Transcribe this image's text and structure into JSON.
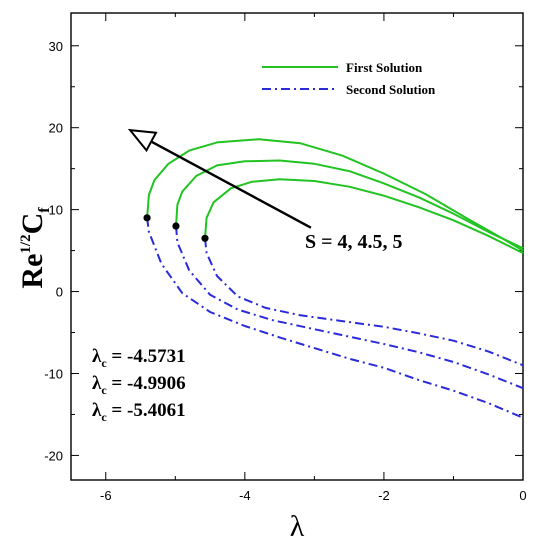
{
  "chart_data": {
    "type": "line",
    "xlabel": "λ",
    "ylabel": {
      "base": "Re",
      "base_exp": "1/2",
      "main": "C",
      "sub": "f"
    },
    "xlim": [
      -6.5,
      0
    ],
    "ylim": [
      -23,
      34
    ],
    "x_ticks": [
      -6,
      -4,
      -2,
      0
    ],
    "y_ticks": [
      -20,
      -10,
      0,
      10,
      20,
      30
    ],
    "x_tick_labels": [
      "-6",
      "-4",
      "-2",
      "0"
    ],
    "y_tick_labels": [
      "-20",
      "-10",
      "0",
      "10",
      "20",
      "30"
    ],
    "grid": false,
    "legend": {
      "placement": "top-right",
      "entries": [
        {
          "label": "First Solution",
          "color": "#22c322",
          "style": "solid"
        },
        {
          "label": "Second Solution",
          "color": "#2b2bd8",
          "style": "dashdot"
        }
      ]
    },
    "series": [
      {
        "group": "first",
        "color": "#22c322",
        "style": "solid",
        "x": [
          -5.4061,
          -5.38,
          -5.3,
          -5.1,
          -4.8,
          -4.4,
          -3.8,
          -3.2,
          -2.6,
          -2.0,
          -1.4,
          -0.8,
          -0.3,
          0
        ],
        "y": [
          9.0,
          11.8,
          13.6,
          15.6,
          17.2,
          18.2,
          18.6,
          18.1,
          16.6,
          14.4,
          11.9,
          8.9,
          6.5,
          5.0
        ]
      },
      {
        "group": "first",
        "color": "#22c322",
        "style": "solid",
        "x": [
          -4.9906,
          -4.97,
          -4.9,
          -4.7,
          -4.4,
          -4.0,
          -3.5,
          -3.0,
          -2.5,
          -2.0,
          -1.5,
          -1.0,
          -0.5,
          0
        ],
        "y": [
          8.0,
          10.6,
          12.2,
          14.1,
          15.4,
          15.9,
          16.0,
          15.6,
          14.7,
          13.2,
          11.5,
          9.5,
          7.3,
          5.3
        ]
      },
      {
        "group": "first",
        "color": "#22c322",
        "style": "solid",
        "x": [
          -4.5731,
          -4.55,
          -4.45,
          -4.2,
          -3.9,
          -3.5,
          -3.0,
          -2.5,
          -2.0,
          -1.5,
          -1.0,
          -0.5,
          0
        ],
        "y": [
          6.5,
          9.0,
          10.9,
          12.6,
          13.4,
          13.7,
          13.5,
          12.8,
          11.7,
          10.3,
          8.7,
          6.8,
          4.7
        ]
      },
      {
        "group": "second",
        "color": "#2b2bd8",
        "style": "dashdot",
        "x": [
          -5.4061,
          -5.38,
          -5.2,
          -4.9,
          -4.5,
          -4.0,
          -3.5,
          -3.0,
          -2.5,
          -2.0,
          -1.5,
          -1.0,
          -0.5,
          0
        ],
        "y": [
          9.0,
          7.3,
          3.4,
          -0.2,
          -2.5,
          -4.2,
          -5.6,
          -6.9,
          -8.2,
          -9.3,
          -10.8,
          -12.1,
          -13.6,
          -15.4
        ]
      },
      {
        "group": "second",
        "color": "#2b2bd8",
        "style": "dashdot",
        "x": [
          -4.9906,
          -4.97,
          -4.8,
          -4.5,
          -4.1,
          -3.6,
          -3.0,
          -2.5,
          -2.0,
          -1.5,
          -1.0,
          -0.5,
          0
        ],
        "y": [
          8.0,
          6.0,
          2.6,
          -0.4,
          -2.2,
          -3.5,
          -4.6,
          -5.5,
          -6.4,
          -7.4,
          -8.6,
          -10.1,
          -11.8
        ]
      },
      {
        "group": "second",
        "color": "#2b2bd8",
        "style": "dashdot",
        "x": [
          -4.5731,
          -4.55,
          -4.4,
          -4.1,
          -3.7,
          -3.2,
          -2.6,
          -2.0,
          -1.5,
          -1.0,
          -0.5,
          0
        ],
        "y": [
          6.5,
          4.7,
          1.9,
          -0.6,
          -2.0,
          -2.9,
          -3.6,
          -4.3,
          -5.1,
          -6.0,
          -7.3,
          -9.0
        ]
      }
    ],
    "critical_points": [
      {
        "x": -5.4061,
        "y": 9.0
      },
      {
        "x": -4.9906,
        "y": 8.0
      },
      {
        "x": -4.5731,
        "y": 6.5
      }
    ],
    "arrow": {
      "from": [
        -3.05,
        7.8
      ],
      "to": [
        -5.65,
        19.7
      ],
      "label": "S = 4, 4.5, 5"
    },
    "annotations": [
      {
        "symbol": "λ",
        "sub": "c",
        "text": " = -4.5731"
      },
      {
        "symbol": "λ",
        "sub": "c",
        "text": " = -4.9906"
      },
      {
        "symbol": "λ",
        "sub": "c",
        "text": " = -5.4061"
      }
    ]
  }
}
